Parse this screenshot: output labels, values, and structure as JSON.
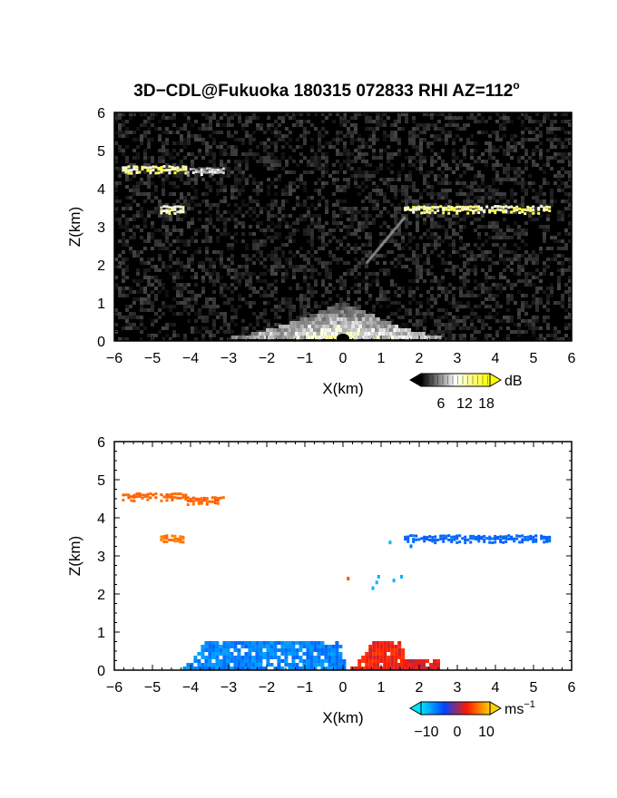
{
  "title": "3D−CDL@Fukuoka 180315 072833 RHI AZ=112",
  "title_superscript": "o",
  "chart_data": [
    {
      "type": "heatmap",
      "quantity": "signal intensity",
      "xlabel": "X(km)",
      "ylabel": "Z(km)",
      "xlim": [
        -6,
        6
      ],
      "ylim": [
        0,
        6
      ],
      "x_ticks": [
        "−6",
        "−5",
        "−4",
        "−3",
        "−2",
        "−1",
        "0",
        "1",
        "2",
        "3",
        "4",
        "5",
        "6"
      ],
      "y_ticks": [
        "0",
        "1",
        "2",
        "3",
        "4",
        "5",
        "6"
      ],
      "background": "#000000",
      "features": [
        {
          "shape": "band",
          "x": [
            -5.8,
            -4.1
          ],
          "z": 4.5,
          "intensity": 14
        },
        {
          "shape": "band",
          "x": [
            -4.1,
            -3.1
          ],
          "z": 4.45,
          "intensity": 8
        },
        {
          "shape": "band",
          "x": [
            -4.8,
            -4.2
          ],
          "z": 3.45,
          "intensity": 12
        },
        {
          "shape": "band",
          "x": [
            1.6,
            5.4
          ],
          "z": 3.45,
          "intensity": 14
        },
        {
          "shape": "near-ground fan",
          "x": [
            -3.5,
            3.0
          ],
          "z": [
            0,
            1.0
          ],
          "intensity": 10
        }
      ],
      "colorbar": {
        "unit": "dB",
        "tick_labels": [
          "6",
          "12",
          "18"
        ],
        "range": [
          0,
          20
        ],
        "colors": [
          "#000000",
          "#ffffff",
          "#ffff00"
        ]
      }
    },
    {
      "type": "heatmap",
      "quantity": "radial velocity",
      "xlabel": "X(km)",
      "ylabel": "Z(km)",
      "xlim": [
        -6,
        6
      ],
      "ylim": [
        0,
        6
      ],
      "x_ticks": [
        "−6",
        "−5",
        "−4",
        "−3",
        "−2",
        "−1",
        "0",
        "1",
        "2",
        "3",
        "4",
        "5",
        "6"
      ],
      "y_ticks": [
        "0",
        "1",
        "2",
        "3",
        "4",
        "5",
        "6"
      ],
      "background": "#ffffff",
      "features": [
        {
          "shape": "band",
          "x": [
            -5.8,
            -4.1
          ],
          "z": 4.55,
          "velocity": 9
        },
        {
          "shape": "band",
          "x": [
            -4.1,
            -3.1
          ],
          "z": 4.45,
          "velocity": 9
        },
        {
          "shape": "band",
          "x": [
            -4.8,
            -4.2
          ],
          "z": 3.45,
          "velocity": 10
        },
        {
          "shape": "band",
          "x": [
            1.6,
            5.4
          ],
          "z": 3.45,
          "velocity": -7
        },
        {
          "shape": "near-ground",
          "x": [
            -4.3,
            0.1
          ],
          "z": [
            0,
            0.85
          ],
          "velocity": -9
        },
        {
          "shape": "near-ground",
          "x": [
            0.1,
            1.7
          ],
          "z": [
            0,
            0.85
          ],
          "velocity": 5
        },
        {
          "shape": "near-ground",
          "x": [
            1.5,
            2.5
          ],
          "z": [
            0,
            0.3
          ],
          "velocity": 4
        }
      ],
      "colorbar": {
        "unit": "ms",
        "unit_superscript": "−1",
        "tick_labels": [
          "−10",
          "0",
          "10"
        ],
        "range": [
          -15,
          15
        ],
        "colors": [
          "#00e5ff",
          "#0044ff",
          "#ff1a00",
          "#ffd000"
        ]
      }
    }
  ]
}
